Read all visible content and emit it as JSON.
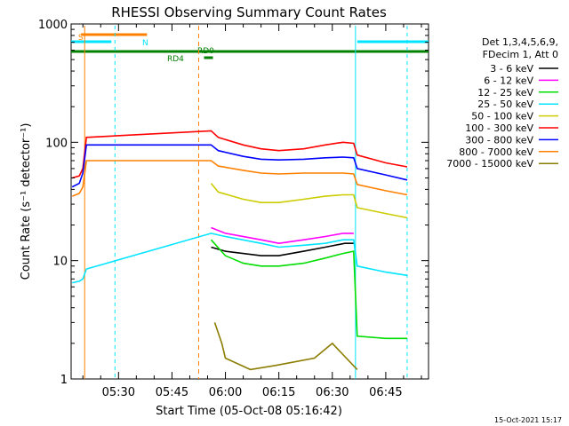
{
  "chart_data": {
    "type": "line",
    "title": "RHESSI Observing Summary Count Rates",
    "xlabel": "Start Time (05-Oct-08 05:16:42)",
    "ylabel": "Count Rate (s⁻¹ detector⁻¹)",
    "y_scale": "log",
    "ylim": [
      1,
      1000
    ],
    "xlim": [
      "05:16:42",
      "06:57:00"
    ],
    "x_ticks": [
      "05:30",
      "05:45",
      "06:00",
      "06:15",
      "06:30",
      "06:45"
    ],
    "y_ticks": [
      "1",
      "10",
      "100",
      "1000"
    ],
    "legend": {
      "placement": "right",
      "header": [
        "Det 1,3,4,5,6,9,",
        "FDecim 1, Att 0"
      ]
    },
    "series": [
      {
        "name": "3 - 6 keV",
        "color": "#000000",
        "x": [
          "05:52:00",
          "05:56:00",
          "06:00:00",
          "06:10:00",
          "06:15:00",
          "06:22:00",
          "06:28:00",
          "06:33:30",
          "06:36:00"
        ],
        "y": [
          null,
          13,
          12,
          11,
          11,
          12,
          13,
          14,
          14
        ]
      },
      {
        "name": "6 - 12 keV",
        "color": "#ff00ff",
        "x": [
          "05:56:00",
          "06:00:00",
          "06:10:00",
          "06:15:00",
          "06:22:00",
          "06:28:00",
          "06:33:00",
          "06:36:00"
        ],
        "y": [
          19,
          17,
          15,
          14,
          15,
          16,
          17,
          17
        ]
      },
      {
        "name": "12 - 25 keV",
        "color": "#00dd00",
        "x": [
          "05:56:00",
          "06:00:00",
          "06:05:00",
          "06:10:00",
          "06:15:00",
          "06:22:00",
          "06:28:00",
          "06:33:00",
          "06:36:00",
          "06:37:00",
          "06:45:00",
          "06:51:00"
        ],
        "y": [
          15,
          11,
          9.5,
          9,
          9,
          9.5,
          10.5,
          11.5,
          12,
          2.3,
          2.2,
          2.2
        ]
      },
      {
        "name": "25 - 50 keV",
        "color": "#00e5ff",
        "x": [
          "05:17:00",
          "05:19:00",
          "05:20:00",
          "05:21:00",
          "05:56:00",
          "06:00:00",
          "06:10:00",
          "06:15:00",
          "06:22:00",
          "06:28:00",
          "06:33:00",
          "06:35:00",
          "06:36:00",
          "06:37:00",
          "06:45:00",
          "06:51:00"
        ],
        "y": [
          6.5,
          6.7,
          7,
          8.5,
          17,
          16,
          14,
          13,
          13.5,
          14,
          15,
          15,
          15,
          9,
          8,
          7.5
        ]
      },
      {
        "name": "50 - 100 keV",
        "color": "#cccc00",
        "x": [
          "05:56:00",
          "05:58:00",
          "06:05:00",
          "06:10:00",
          "06:15:00",
          "06:22:00",
          "06:28:00",
          "06:33:00",
          "06:36:00",
          "06:37:00",
          "06:45:00",
          "06:51:00"
        ],
        "y": [
          45,
          38,
          33,
          31,
          31,
          33,
          35,
          36,
          36,
          28,
          25,
          23
        ]
      },
      {
        "name": "100 - 300 keV",
        "color": "#ff0000",
        "x": [
          "05:17:00",
          "05:19:00",
          "05:20:00",
          "05:21:00",
          "05:56:00",
          "05:58:00",
          "06:05:00",
          "06:10:00",
          "06:15:00",
          "06:22:00",
          "06:28:00",
          "06:33:00",
          "06:36:00",
          "06:37:00",
          "06:45:00",
          "06:51:00"
        ],
        "y": [
          50,
          52,
          60,
          110,
          125,
          110,
          95,
          88,
          85,
          88,
          95,
          100,
          98,
          78,
          67,
          62
        ]
      },
      {
        "name": "300 - 800 keV",
        "color": "#0000ff",
        "x": [
          "05:17:00",
          "05:19:00",
          "05:20:00",
          "05:21:00",
          "05:56:00",
          "05:58:00",
          "06:05:00",
          "06:10:00",
          "06:15:00",
          "06:22:00",
          "06:28:00",
          "06:33:00",
          "06:36:00",
          "06:37:00",
          "06:45:00",
          "06:51:00"
        ],
        "y": [
          42,
          45,
          55,
          95,
          95,
          85,
          76,
          72,
          71,
          72,
          74,
          75,
          74,
          60,
          53,
          48
        ]
      },
      {
        "name": "800 - 7000 keV",
        "color": "#ff8000",
        "x": [
          "05:17:00",
          "05:19:00",
          "05:20:00",
          "05:21:00",
          "05:56:00",
          "05:58:00",
          "06:05:00",
          "06:10:00",
          "06:15:00",
          "06:22:00",
          "06:28:00",
          "06:33:00",
          "06:36:00",
          "06:37:00",
          "06:45:00",
          "06:51:00"
        ],
        "y": [
          35,
          37,
          42,
          70,
          70,
          63,
          58,
          55,
          54,
          55,
          55,
          55,
          54,
          44,
          39,
          36
        ]
      },
      {
        "name": "7000 - 15000 keV",
        "color": "#8b7d00",
        "x": [
          "05:57:00",
          "05:59:00",
          "06:00:00",
          "06:07:00",
          "06:14:00",
          "06:25:00",
          "06:30:00",
          "06:37:00"
        ],
        "y": [
          3,
          2,
          1.5,
          1.2,
          1.3,
          1.5,
          2,
          1.2
        ]
      }
    ],
    "annotations": {
      "flags": [
        {
          "label": "S",
          "color": "#ff8000"
        },
        {
          "label": "N",
          "color": "#00e5ff"
        },
        {
          "label": "RD0",
          "color": "#008000"
        },
        {
          "label": "RD4",
          "color": "#008000"
        }
      ]
    },
    "footer_timestamp": "15-Oct-2021 15:17"
  }
}
